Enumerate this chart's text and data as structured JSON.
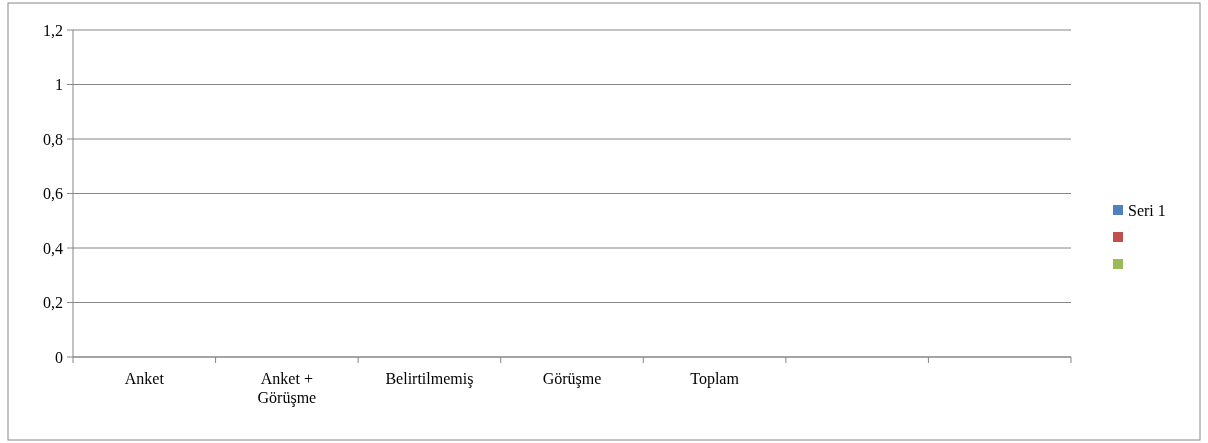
{
  "chart_data": {
    "type": "bar",
    "categories": [
      "Anket",
      "Anket + Görüşme",
      "Belirtilmemiş",
      "Görüşme",
      "Toplam",
      null,
      null
    ],
    "series": [
      {
        "name": "Seri 1",
        "color": "#4f81bd",
        "values": [
          null,
          null,
          null,
          null,
          null,
          null,
          null
        ]
      },
      {
        "color": "#c0504d",
        "values": [
          null,
          null,
          null,
          null,
          null,
          null,
          null
        ]
      },
      {
        "color": "#9bbb59",
        "values": [
          null,
          null,
          null,
          null,
          null,
          null,
          null
        ]
      }
    ],
    "ylim": [
      0,
      1.2
    ],
    "yticks": [
      0,
      {
        "value": 0.2,
        "label": "0,2"
      },
      {
        "value": 0.4,
        "label": "0,4"
      },
      {
        "value": 0.6,
        "label": "0,6"
      },
      {
        "value": 0.8,
        "label": "0,8"
      },
      1,
      {
        "value": 1.2,
        "label": "1,2"
      }
    ],
    "grid": "y",
    "legend": "right"
  }
}
